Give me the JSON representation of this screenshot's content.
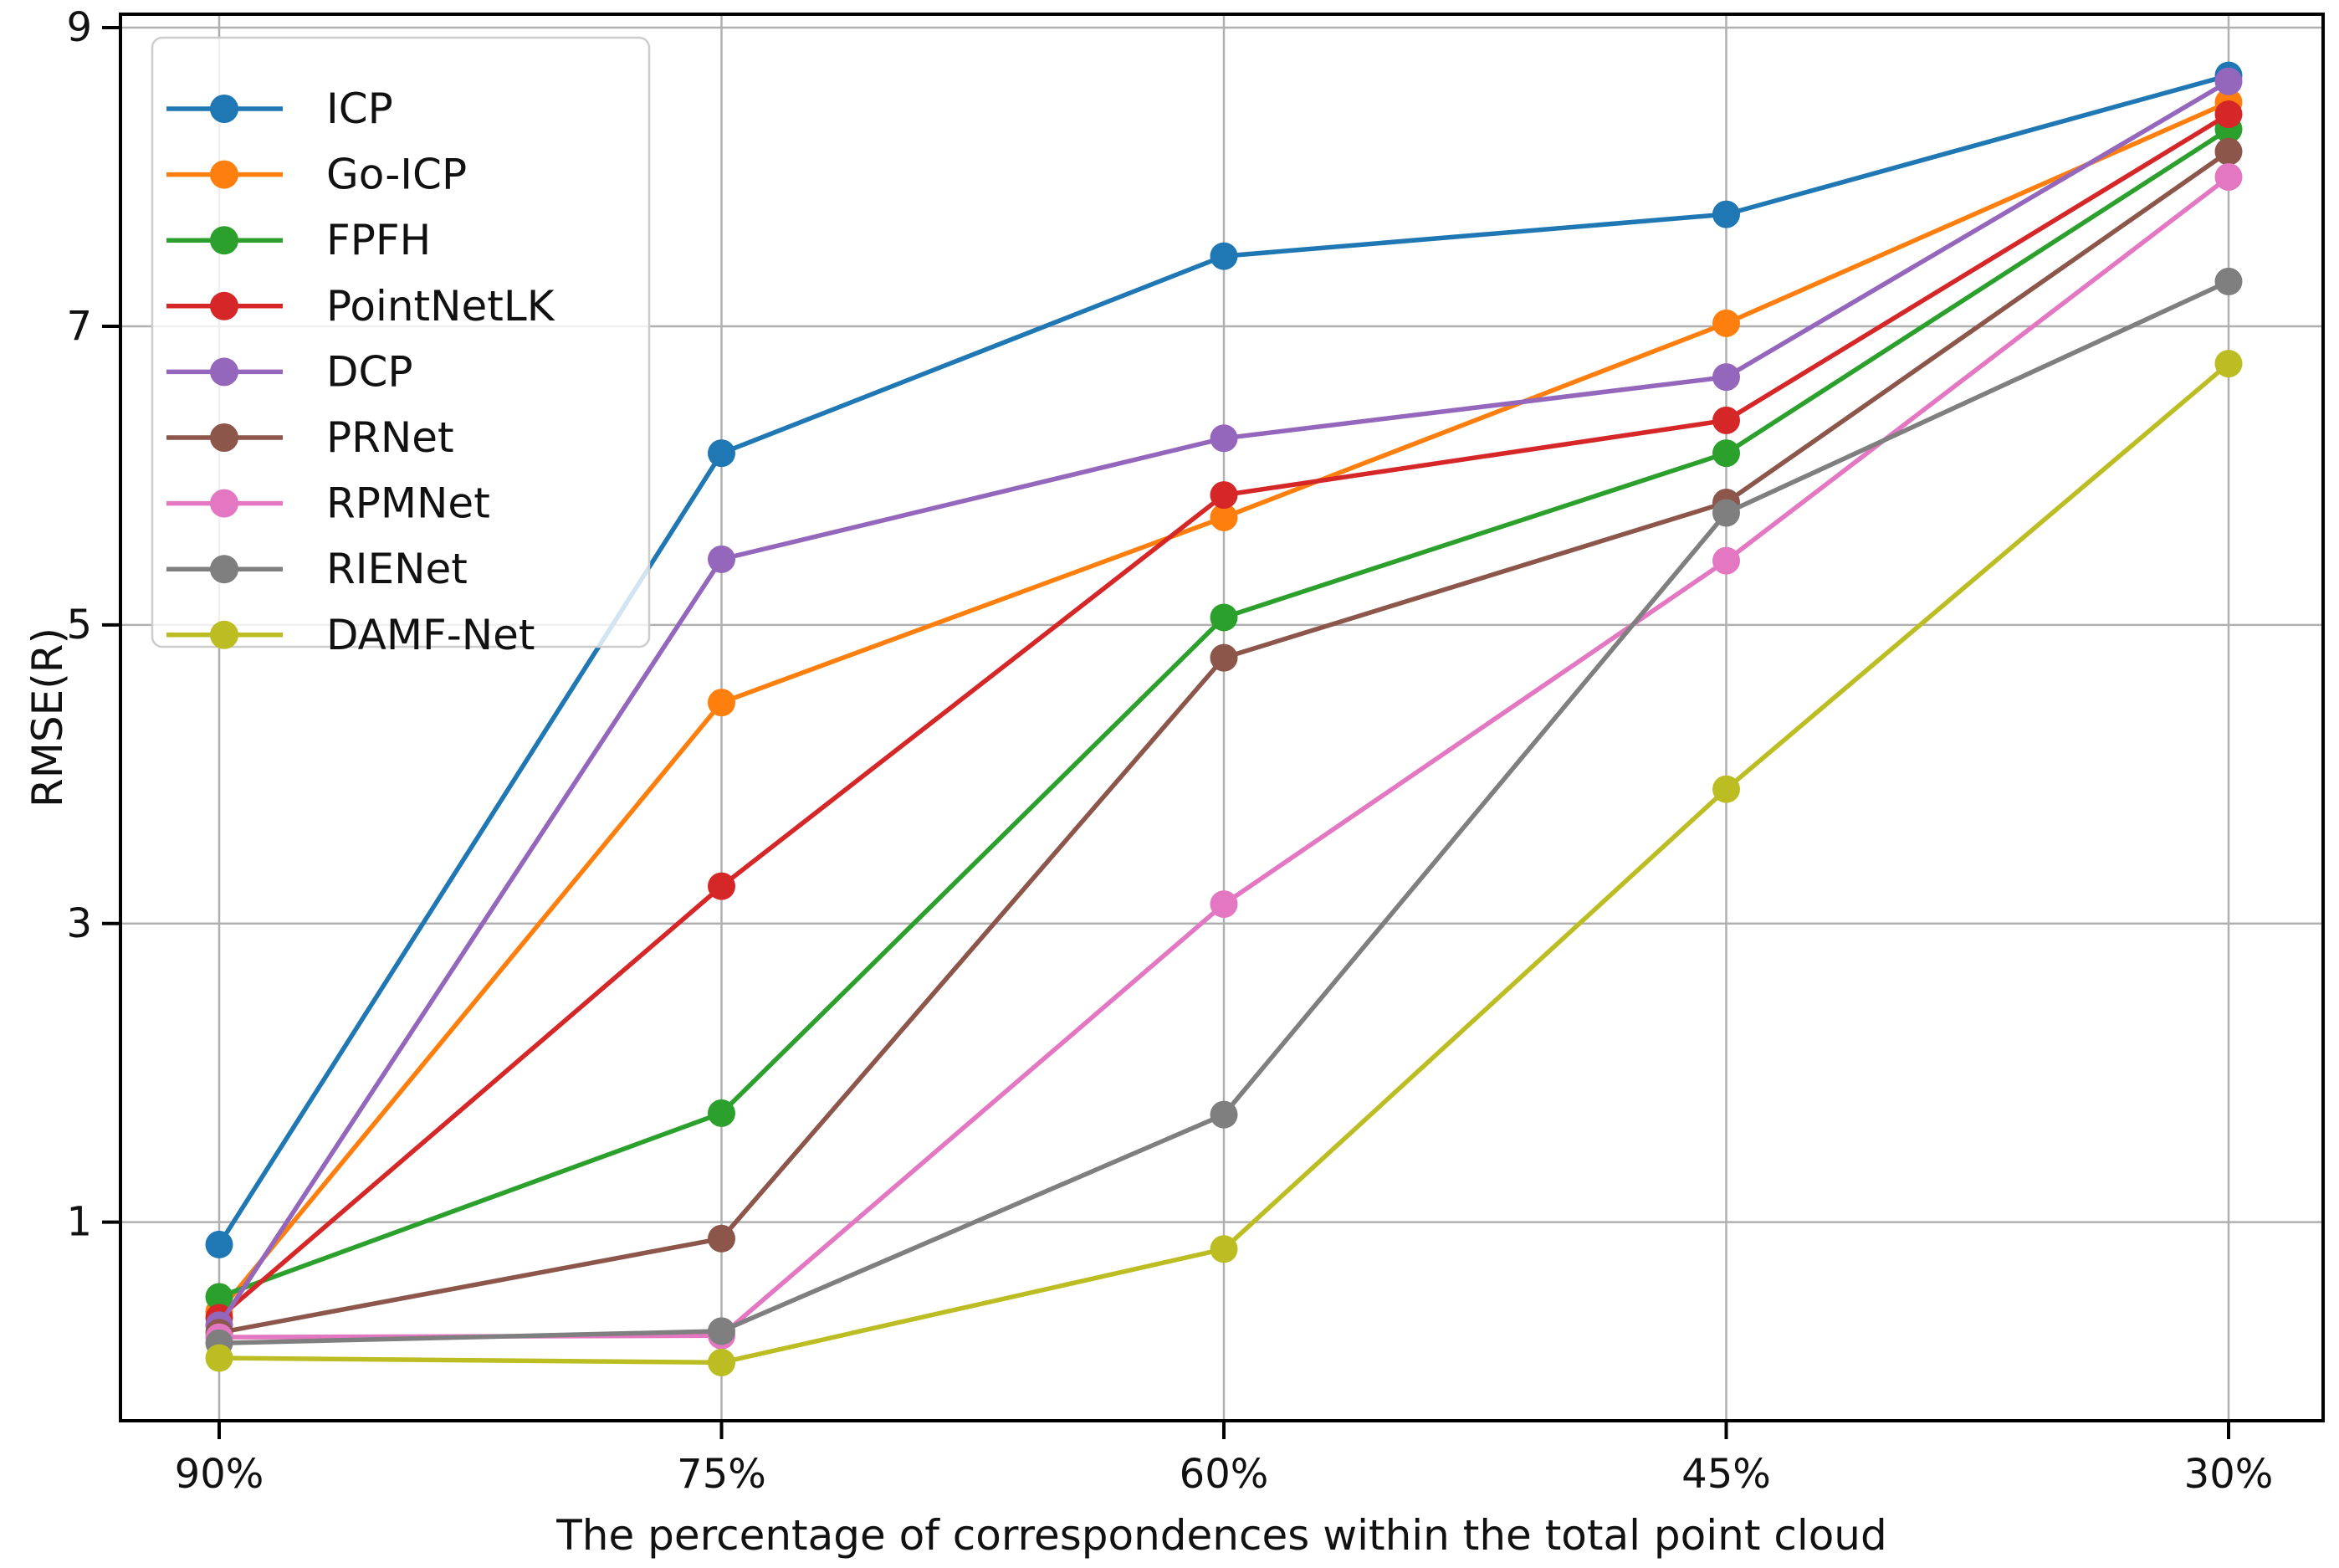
{
  "chart_data": {
    "type": "line",
    "title": "",
    "xlabel": "The percentage of correspondences within the total point cloud",
    "ylabel": "RMSE(R)",
    "categories": [
      "90%",
      "75%",
      "60%",
      "45%",
      "30%"
    ],
    "yticks": [
      1,
      3,
      5,
      7,
      9
    ],
    "ylim": [
      -0.33,
      9.09
    ],
    "grid": true,
    "grid_color": "#b0b0b0",
    "spine_color": "#000000",
    "text_color": "#111111",
    "legend_position": "upper left",
    "legend_border_color": "#cccccc",
    "series": [
      {
        "name": "ICP",
        "color": "#1f77b4",
        "values": [
          0.85,
          6.15,
          7.47,
          7.75,
          8.68
        ]
      },
      {
        "name": "Go-ICP",
        "color": "#ff7f0e",
        "values": [
          0.4,
          4.48,
          5.72,
          7.02,
          8.5
        ]
      },
      {
        "name": "FPFH",
        "color": "#2ca02c",
        "values": [
          0.5,
          1.73,
          5.05,
          6.15,
          8.32
        ]
      },
      {
        "name": "PointNetLK",
        "color": "#d62728",
        "values": [
          0.36,
          3.25,
          5.87,
          6.37,
          8.42
        ]
      },
      {
        "name": "DCP",
        "color": "#9467bd",
        "values": [
          0.31,
          5.44,
          6.25,
          6.66,
          8.64
        ]
      },
      {
        "name": "PRNet",
        "color": "#8c564b",
        "values": [
          0.26,
          0.89,
          4.78,
          5.82,
          8.17
        ]
      },
      {
        "name": "RPMNet",
        "color": "#e377c2",
        "values": [
          0.23,
          0.24,
          3.13,
          5.43,
          8.0
        ]
      },
      {
        "name": "RIENet",
        "color": "#7f7f7f",
        "values": [
          0.19,
          0.27,
          1.72,
          5.75,
          7.3
        ]
      },
      {
        "name": "DAMF-Net",
        "color": "#bcbd22",
        "values": [
          0.09,
          0.06,
          0.82,
          3.9,
          6.75
        ]
      }
    ]
  }
}
